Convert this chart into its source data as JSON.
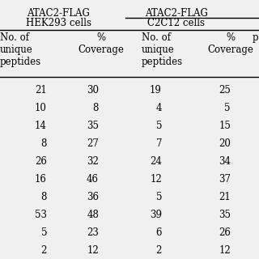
{
  "header1_line1": "ATAC2-FLAG",
  "header1_line2": "HEK293 cells",
  "header2_line1": "ATAC2-FLAG",
  "header2_line2": "C2C12 cells",
  "subheader_col1": "No. of\nunique\npeptides",
  "subheader_col2": "%\nCoverage",
  "subheader_col3": "No. of\nunique\npeptides",
  "subheader_col4": "%\nCoverage",
  "subheader_col5": "p",
  "rows": [
    [
      "21",
      "30",
      "19",
      "25"
    ],
    [
      "10",
      "8",
      "4",
      "5"
    ],
    [
      "14",
      "35",
      "5",
      "15"
    ],
    [
      "8",
      "27",
      "7",
      "20"
    ],
    [
      "26",
      "32",
      "24",
      "34"
    ],
    [
      "16",
      "46",
      "12",
      "37"
    ],
    [
      "8",
      "36",
      "5",
      "21"
    ],
    [
      "53",
      "48",
      "39",
      "35"
    ],
    [
      "5",
      "23",
      "6",
      "26"
    ],
    [
      "2",
      "12",
      "2",
      "12"
    ]
  ],
  "bg_color": "#f0f0f0",
  "font_size": 8.5,
  "header_font_size": 8.5,
  "fig_width": 3.2,
  "fig_height": 3.2,
  "dpi": 100
}
